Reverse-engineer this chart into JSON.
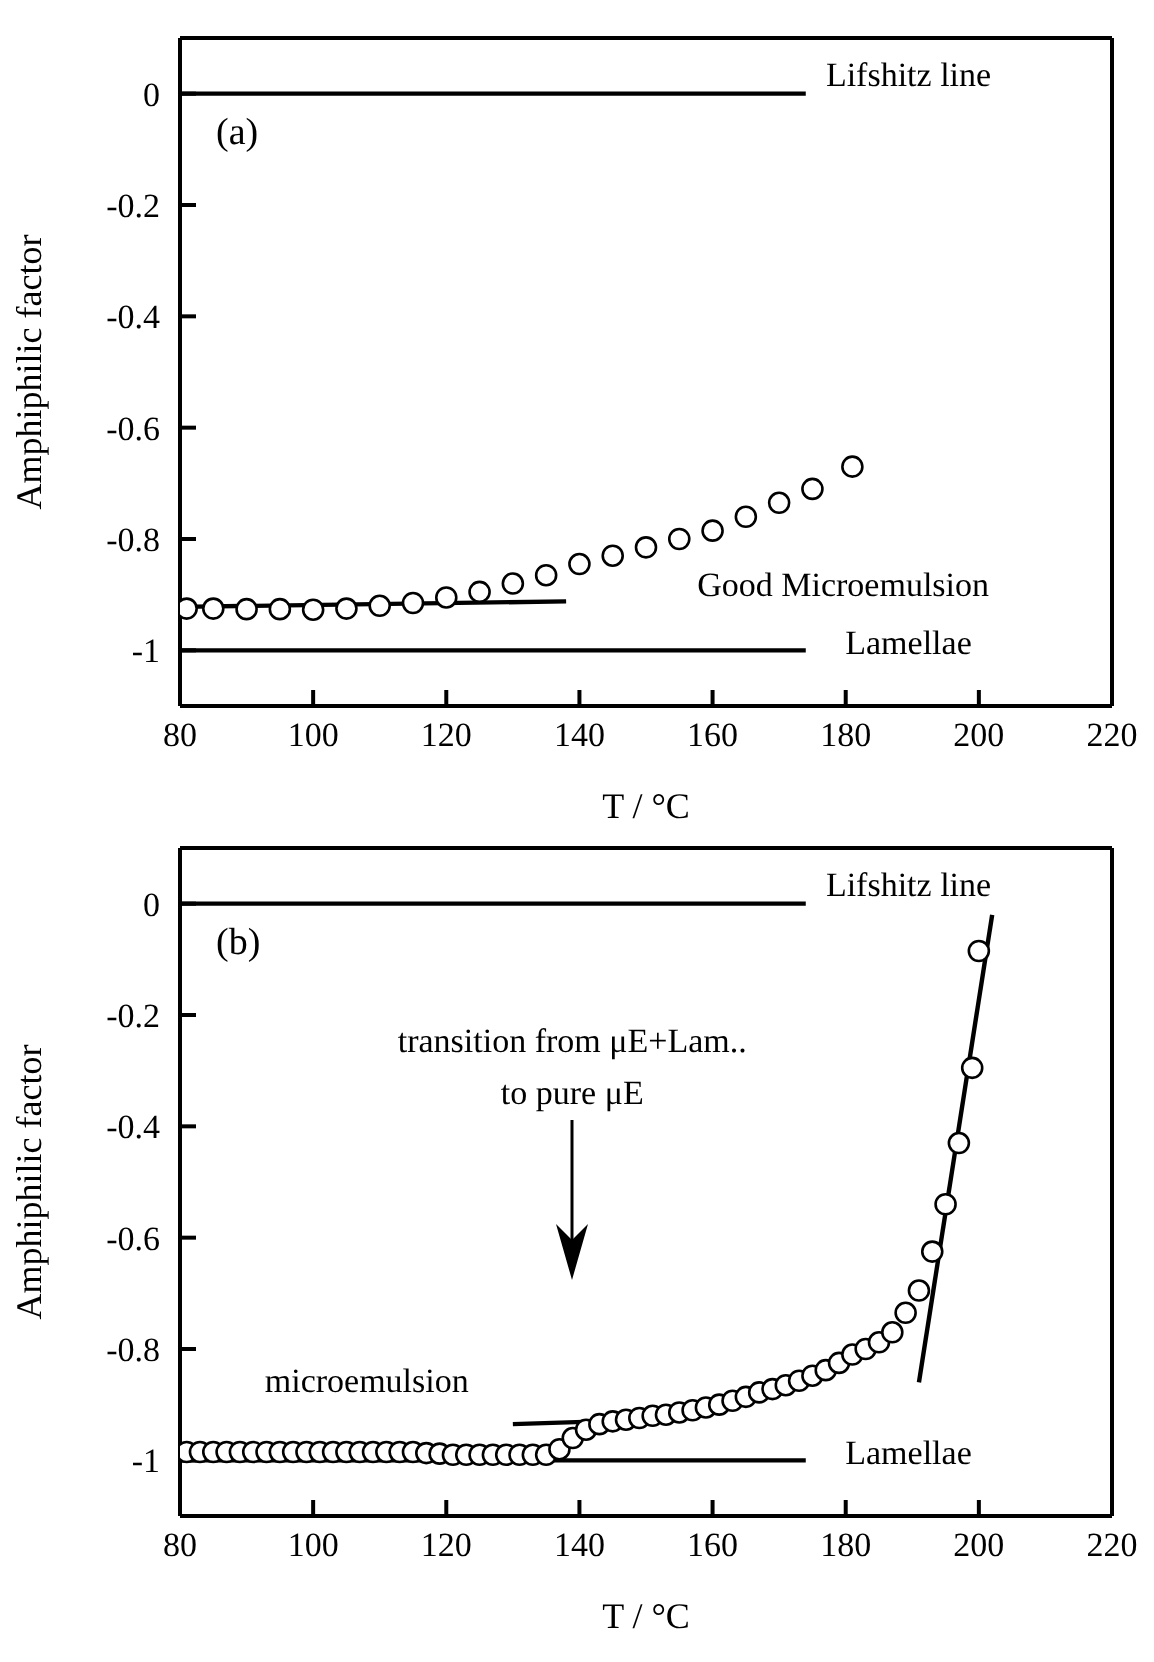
{
  "chart_data": [
    {
      "type": "scatter",
      "title": "(a)",
      "xlabel": "T / °C",
      "ylabel": "Amphiphilic factor",
      "xlim": [
        80,
        220
      ],
      "xticks": [
        80,
        100,
        120,
        140,
        160,
        180,
        200,
        220
      ],
      "ylim": [
        -1.1,
        0.1
      ],
      "yticks": [
        0,
        -0.2,
        -0.4,
        -0.6,
        -0.8,
        -1
      ],
      "series": [
        {
          "marker": "circle",
          "color": "#000000",
          "x": [
            81,
            85,
            90,
            95,
            100,
            105,
            110,
            115,
            120,
            125,
            130,
            135,
            140,
            145,
            150,
            155,
            160,
            165,
            170,
            175,
            181
          ],
          "values": [
            -0.925,
            -0.925,
            -0.926,
            -0.926,
            -0.927,
            -0.925,
            -0.92,
            -0.915,
            -0.905,
            -0.895,
            -0.88,
            -0.865,
            -0.845,
            -0.83,
            -0.815,
            -0.8,
            -0.785,
            -0.76,
            -0.735,
            -0.71,
            -0.67
          ]
        },
        {
          "type": "line",
          "color": "#000000",
          "x": [
            80,
            138
          ],
          "values": [
            -0.922,
            -0.912
          ]
        },
        {
          "type": "line",
          "color": "#000000",
          "x": [
            80,
            174
          ],
          "values": [
            0,
            0
          ]
        },
        {
          "type": "line",
          "color": "#000000",
          "x": [
            80,
            174
          ],
          "values": [
            -1,
            -1
          ]
        }
      ],
      "annotations": [
        "Lifshitz line",
        "Good Microemulsion",
        "Lamellae"
      ]
    },
    {
      "type": "scatter",
      "title": "(b)",
      "xlabel": "T / °C",
      "ylabel": "Amphiphilic factor",
      "xlim": [
        80,
        220
      ],
      "xticks": [
        80,
        100,
        120,
        140,
        160,
        180,
        200,
        220
      ],
      "ylim": [
        -1.1,
        0.1
      ],
      "yticks": [
        0,
        -0.2,
        -0.4,
        -0.6,
        -0.8,
        -1
      ],
      "series": [
        {
          "marker": "circle",
          "color": "#000000",
          "x": [
            81,
            83,
            85,
            87,
            89,
            91,
            93,
            95,
            97,
            99,
            101,
            103,
            105,
            107,
            109,
            111,
            113,
            115,
            117,
            119,
            121,
            123,
            125,
            127,
            129,
            131,
            133,
            135,
            137,
            139,
            141,
            143,
            145,
            147,
            149,
            151,
            153,
            155,
            157,
            159,
            161,
            163,
            165,
            167,
            169,
            171,
            173,
            175,
            177,
            179,
            181,
            183,
            185,
            187,
            189,
            191,
            193,
            195,
            197,
            199,
            200
          ],
          "values": [
            -0.985,
            -0.985,
            -0.985,
            -0.985,
            -0.985,
            -0.985,
            -0.985,
            -0.985,
            -0.985,
            -0.985,
            -0.985,
            -0.985,
            -0.985,
            -0.985,
            -0.985,
            -0.985,
            -0.985,
            -0.985,
            -0.987,
            -0.988,
            -0.99,
            -0.99,
            -0.99,
            -0.99,
            -0.99,
            -0.99,
            -0.99,
            -0.99,
            -0.98,
            -0.96,
            -0.945,
            -0.935,
            -0.93,
            -0.927,
            -0.924,
            -0.92,
            -0.918,
            -0.914,
            -0.91,
            -0.905,
            -0.9,
            -0.893,
            -0.886,
            -0.878,
            -0.872,
            -0.865,
            -0.857,
            -0.848,
            -0.838,
            -0.825,
            -0.81,
            -0.8,
            -0.788,
            -0.77,
            -0.735,
            -0.695,
            -0.625,
            -0.54,
            -0.43,
            -0.295,
            -0.085
          ]
        },
        {
          "type": "line",
          "color": "#000000",
          "x": [
            130,
            156
          ],
          "values": [
            -0.935,
            -0.925
          ]
        },
        {
          "type": "line",
          "color": "#000000",
          "x": [
            191,
            202
          ],
          "values": [
            -0.86,
            -0.02
          ]
        },
        {
          "type": "line",
          "color": "#000000",
          "x": [
            80,
            174
          ],
          "values": [
            0,
            0
          ]
        },
        {
          "type": "line",
          "color": "#000000",
          "x": [
            80,
            174
          ],
          "values": [
            -1,
            -1
          ]
        }
      ],
      "annotations": [
        "Lifshitz line",
        "transition from μE+Lam..\nto pure μE",
        "microemulsion",
        "Lamellae"
      ]
    }
  ]
}
